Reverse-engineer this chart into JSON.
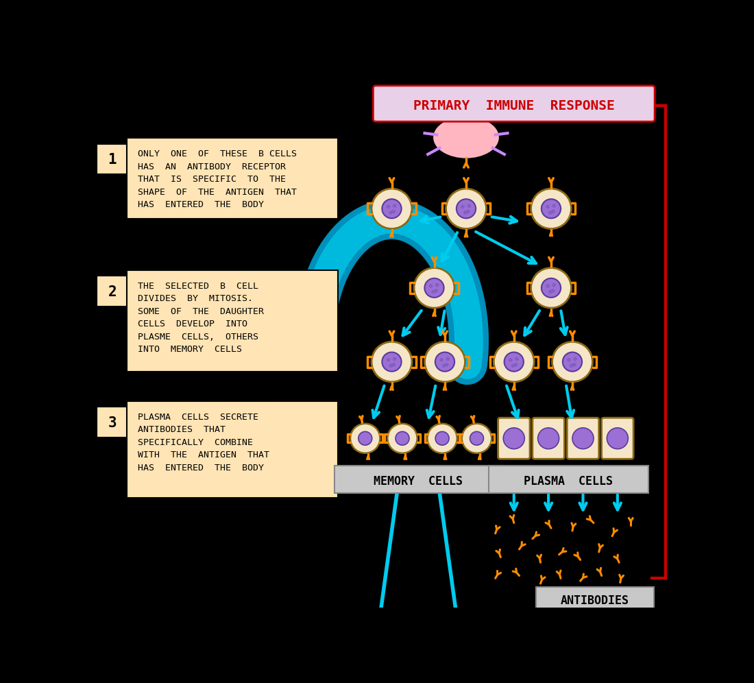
{
  "bg_color": "#000000",
  "cell_outer_color": "#F5E6C8",
  "cell_nucleus_color": "#9B6FD4",
  "antigen_color": "#FFB6C1",
  "antigen_spike_color": "#CC88FF",
  "receptor_color": "#FF8C00",
  "arrow_cyan_color": "#00CCEE",
  "label_box_color": "#FFE4B5",
  "red_border_color": "#CC0000",
  "title_text_color": "#CC0000",
  "title_bg": "#E8D0E8",
  "gray_label_bg": "#C8C8C8",
  "title": "PRIMARY  IMMUNE  RESPONSE",
  "label1_num": "1",
  "label1_text": "ONLY  ONE  OF  THESE  B CELLS\nHAS  AN  ANTIBODY  RECEPTOR\nTHAT  IS  SPECIFIC  TO  THE\nSHAPE  OF  THE  ANTIGEN  THAT\nHAS  ENTERED  THE  BODY",
  "label2_num": "2",
  "label2_text": "THE  SELECTED  B  CELL\nDIVIDES  BY  MITOSIS.\nSOME  OF  THE  DAUGHTER\nCELLS  DEVELOP  INTO\nPLASME  CELLS,  OTHERS\nINTO  MEMORY  CELLS",
  "label3_num": "3",
  "label3_text": "PLASMA  CELLS  SECRETE\nANTIBODIES  THAT\nSPECIFICALLY  COMBINE\nWITH  THE  ANTIGEN  THAT\nHAS  ENTERED  THE  BODY",
  "memory_cells_label": "MEMORY  CELLS",
  "plasma_cells_label": "PLASMA  CELLS",
  "antibodies_label": "ANTIBODIES"
}
